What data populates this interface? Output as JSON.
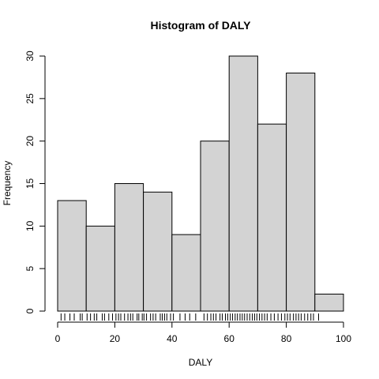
{
  "chart_data": {
    "type": "bar",
    "title": "Histogram of DALY",
    "xlabel": "DALY",
    "ylabel": "Frequency",
    "bins": [
      {
        "from": 0,
        "to": 10,
        "count": 13
      },
      {
        "from": 10,
        "to": 20,
        "count": 10
      },
      {
        "from": 20,
        "to": 30,
        "count": 15
      },
      {
        "from": 30,
        "to": 40,
        "count": 14
      },
      {
        "from": 40,
        "to": 50,
        "count": 9
      },
      {
        "from": 50,
        "to": 60,
        "count": 20
      },
      {
        "from": 60,
        "to": 70,
        "count": 30
      },
      {
        "from": 70,
        "to": 80,
        "count": 22
      },
      {
        "from": 80,
        "to": 90,
        "count": 28
      },
      {
        "from": 90,
        "to": 100,
        "count": 2
      }
    ],
    "xlim": [
      0,
      100
    ],
    "ylim": [
      0,
      30
    ],
    "x_ticks": [
      0,
      20,
      40,
      60,
      80,
      100
    ],
    "y_ticks": [
      0,
      5,
      10,
      15,
      20,
      25,
      30
    ],
    "bar_fill": "#d3d3d3",
    "bar_stroke": "#000000",
    "rug": [
      1.2,
      2.5,
      4.3,
      5.8,
      7.9,
      8.6,
      10.3,
      11.5,
      12.8,
      13.7,
      15.6,
      16.4,
      17.9,
      19.2,
      20.4,
      21.3,
      22.1,
      23.4,
      24.6,
      25.5,
      26.3,
      27.8,
      28.4,
      29.6,
      30.2,
      31.1,
      32.5,
      33.4,
      34.3,
      35.9,
      36.6,
      37.4,
      38.2,
      39.5,
      40.5,
      42.8,
      44.6,
      46.2,
      48.3,
      51.2,
      52.4,
      53.6,
      54.5,
      55.4,
      56.8,
      57.6,
      58.7,
      59.5,
      60.4,
      61.2,
      62.1,
      62.9,
      63.8,
      64.6,
      65.4,
      66.3,
      67.2,
      68.1,
      68.9,
      69.7,
      70.6,
      71.5,
      72.4,
      73.3,
      74.6,
      75.8,
      77.1,
      78.3,
      79.5,
      80.4,
      81.3,
      82.5,
      83.4,
      84.3,
      85.2,
      86.4,
      87.5,
      88.6,
      89.5,
      91.3
    ]
  }
}
